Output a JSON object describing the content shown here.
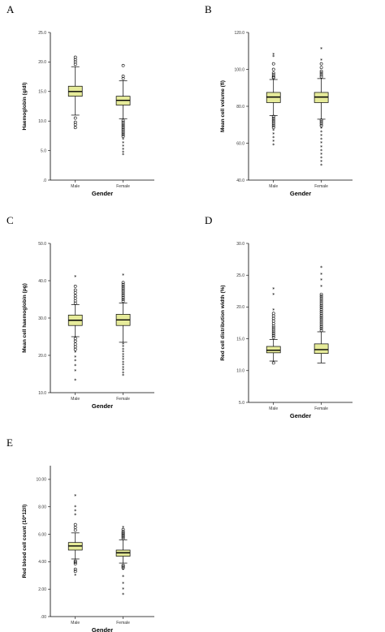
{
  "colors": {
    "box_fill": "#e6eb9a",
    "box_stroke": "#000000",
    "outlier": "#000000"
  },
  "chart_data": [
    {
      "type": "box",
      "panel": "A",
      "xlabel": "Gender",
      "ylabel": "Haemoglobin (g/dl)",
      "ylim": [
        0,
        25
      ],
      "yticks": [
        0,
        5,
        10,
        15,
        20,
        25
      ],
      "ytick_labels": [
        ".0",
        "5.0",
        "10.0",
        "15.0",
        "20.0",
        "25.0"
      ],
      "categories": [
        "Male",
        "Female"
      ],
      "boxes": [
        {
          "min": 11.0,
          "q1": 14.2,
          "median": 15.0,
          "q3": 15.9,
          "max": 19.2,
          "outliers_circle": [
            20.8,
            20.4,
            20.0,
            19.6,
            10.5,
            9.8,
            9.4,
            8.9
          ],
          "outliers_star": []
        },
        {
          "min": 10.4,
          "q1": 12.7,
          "median": 13.5,
          "q3": 14.2,
          "max": 16.8,
          "outliers_circle": [
            19.4,
            17.6,
            17.2,
            10.1,
            9.8,
            9.5,
            9.2,
            8.9,
            8.6,
            8.3,
            8.0,
            7.7,
            7.4
          ],
          "outliers_star": [
            6.9,
            6.3,
            5.7,
            5.2,
            4.7,
            4.3
          ]
        }
      ]
    },
    {
      "type": "box",
      "panel": "B",
      "xlabel": "Gender",
      "ylabel": "Mean cell volume (fl)",
      "ylim": [
        40,
        120
      ],
      "yticks": [
        40,
        60,
        80,
        100,
        120
      ],
      "ytick_labels": [
        "40.0",
        "60.0",
        "80.0",
        "100.0",
        "120.0"
      ],
      "categories": [
        "Male",
        "Female"
      ],
      "boxes": [
        {
          "min": 75,
          "q1": 82,
          "median": 85,
          "q3": 87.5,
          "max": 94.5,
          "outliers_circle": [
            103,
            100,
            98,
            97,
            96,
            95.5,
            74.5,
            73.5,
            72.5,
            71.5,
            70.5,
            69.5,
            68.5
          ],
          "outliers_star": [
            108,
            107,
            67,
            65,
            63,
            61,
            59
          ]
        },
        {
          "min": 73,
          "q1": 82,
          "median": 85,
          "q3": 87.5,
          "max": 95,
          "outliers_circle": [
            103,
            101,
            99,
            98,
            97,
            96,
            72.5,
            71.5,
            70.5,
            69.5
          ],
          "outliers_star": [
            111,
            105,
            68,
            66,
            64,
            62,
            60,
            58,
            56,
            54,
            52,
            50,
            48
          ]
        }
      ]
    },
    {
      "type": "box",
      "panel": "C",
      "xlabel": "Gender",
      "ylabel": "Mean cell haemoglobin (pg)",
      "ylim": [
        10,
        50
      ],
      "yticks": [
        10,
        20,
        30,
        40,
        50
      ],
      "ytick_labels": [
        "10.0",
        "20.0",
        "30.0",
        "40.0",
        "50.0"
      ],
      "categories": [
        "Male",
        "Female"
      ],
      "boxes": [
        {
          "min": 25,
          "q1": 28,
          "median": 29.4,
          "q3": 30.8,
          "max": 33.6,
          "outliers_circle": [
            38.5,
            37.5,
            36.8,
            36.0,
            35.3,
            34.6,
            34.0,
            24.5,
            23.8,
            23.0,
            22.3,
            21.6
          ],
          "outliers_star": [
            41,
            20.8,
            19.5,
            18.5,
            17.2,
            15.8,
            13.3
          ]
        },
        {
          "min": 23.5,
          "q1": 28,
          "median": 29.5,
          "q3": 31.0,
          "max": 34.0,
          "outliers_circle": [
            39.5,
            39.0,
            38.5,
            38.0,
            37.5,
            37.0,
            36.5,
            36.0,
            35.5,
            35.0,
            34.5
          ],
          "outliers_star": [
            41.5,
            23.0,
            22.3,
            21.6,
            20.9,
            20.2,
            19.5,
            18.8,
            18.1,
            17.4,
            16.7,
            16.0,
            15.3,
            14.6
          ]
        }
      ]
    },
    {
      "type": "box",
      "panel": "D",
      "xlabel": "Gender",
      "ylabel": "Red cell distribution width (%)",
      "ylim": [
        5,
        30
      ],
      "yticks": [
        5,
        10,
        15,
        20,
        25,
        30
      ],
      "ytick_labels": [
        "5.0",
        "10.0",
        "15.0",
        "20.0",
        "25.0",
        "30.0"
      ],
      "categories": [
        "Male",
        "Female"
      ],
      "boxes": [
        {
          "min": 11.5,
          "q1": 12.8,
          "median": 13.2,
          "q3": 13.8,
          "max": 14.9,
          "outliers_circle": [
            15.2,
            15.5,
            15.8,
            16.1,
            16.4,
            16.7,
            17.0,
            17.4,
            17.8,
            18.2,
            18.6,
            19.0,
            11.2
          ],
          "outliers_star": [
            22.8,
            21.9,
            19.5
          ]
        },
        {
          "min": 11.2,
          "q1": 12.7,
          "median": 13.3,
          "q3": 14.2,
          "max": 16.1,
          "outliers_circle": [
            16.3,
            16.6,
            16.9,
            17.2,
            17.5,
            17.8,
            18.1,
            18.4,
            18.7,
            19.0,
            19.3,
            19.6,
            19.9,
            20.2,
            20.5,
            20.8,
            21.1,
            21.4,
            21.7,
            22.0
          ],
          "outliers_star": [
            26.2,
            25.1,
            24.2,
            23.2
          ]
        }
      ]
    },
    {
      "type": "box",
      "panel": "E",
      "xlabel": "Gender",
      "ylabel": "Red blood cell count (10*12/l)",
      "ylim": [
        0,
        11
      ],
      "yticks": [
        0,
        2,
        4,
        6,
        8,
        10
      ],
      "ytick_labels": [
        ".00",
        "2.00",
        "4.00",
        "6.00",
        "8.00",
        "10.00"
      ],
      "categories": [
        "Male",
        "Female"
      ],
      "boxes": [
        {
          "min": 4.2,
          "q1": 4.85,
          "median": 5.15,
          "q3": 5.4,
          "max": 6.1,
          "outliers_circle": [
            6.3,
            6.5,
            6.7,
            4.05,
            3.95,
            3.85,
            3.45,
            3.3
          ],
          "outliers_star": [
            8.8,
            8.0,
            7.7,
            7.4,
            3.0
          ]
        },
        {
          "min": 3.9,
          "q1": 4.4,
          "median": 4.65,
          "q3": 4.85,
          "max": 5.6,
          "outliers_circle": [
            5.7,
            5.8,
            5.9,
            6.0,
            6.1,
            6.2,
            6.35,
            3.75,
            3.65,
            3.55
          ],
          "outliers_star": [
            6.5,
            3.4,
            2.9,
            2.4,
            2.0,
            1.6
          ]
        }
      ]
    }
  ]
}
